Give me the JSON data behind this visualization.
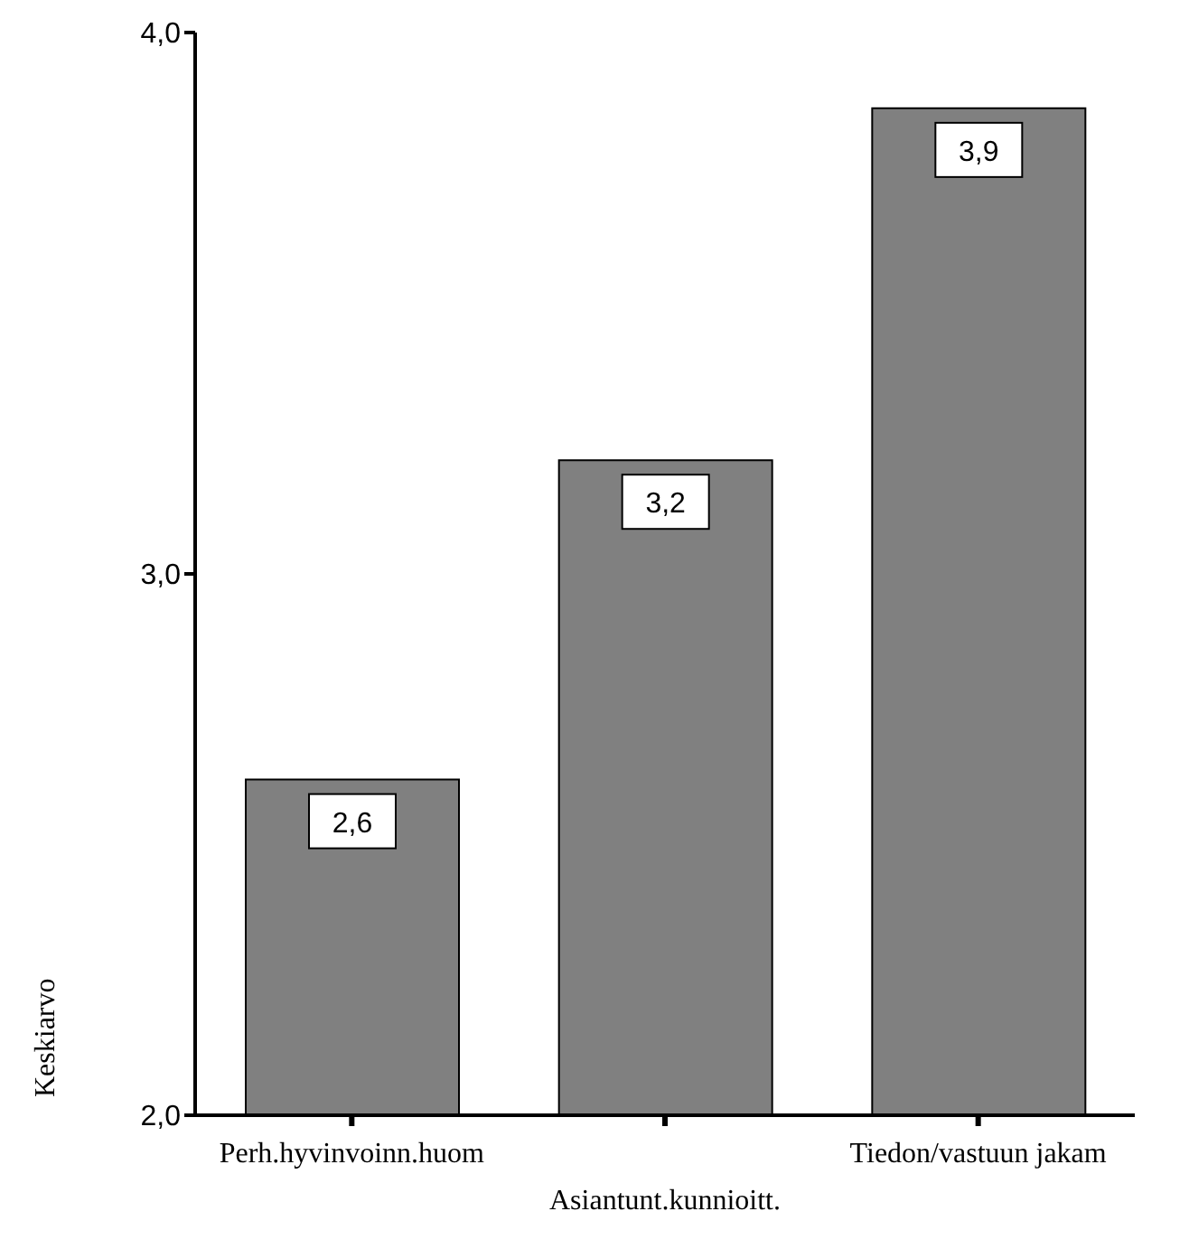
{
  "chart_data": {
    "type": "bar",
    "ylabel": "Keskiarvo",
    "categories": [
      "Perh.hyvinvoinn.huom",
      "Asiantunt.kunnioitt.",
      "Tiedon/vastuun jakam"
    ],
    "values": [
      2.62,
      3.21,
      3.86
    ],
    "value_labels": [
      "2,6",
      "3,2",
      "3,9"
    ],
    "color": "#808080",
    "ylim": [
      2,
      4
    ],
    "yticks": [
      {
        "value": 2,
        "label": "2,0"
      },
      {
        "value": 3,
        "label": "3,0"
      },
      {
        "value": 4,
        "label": "4,0"
      }
    ]
  }
}
